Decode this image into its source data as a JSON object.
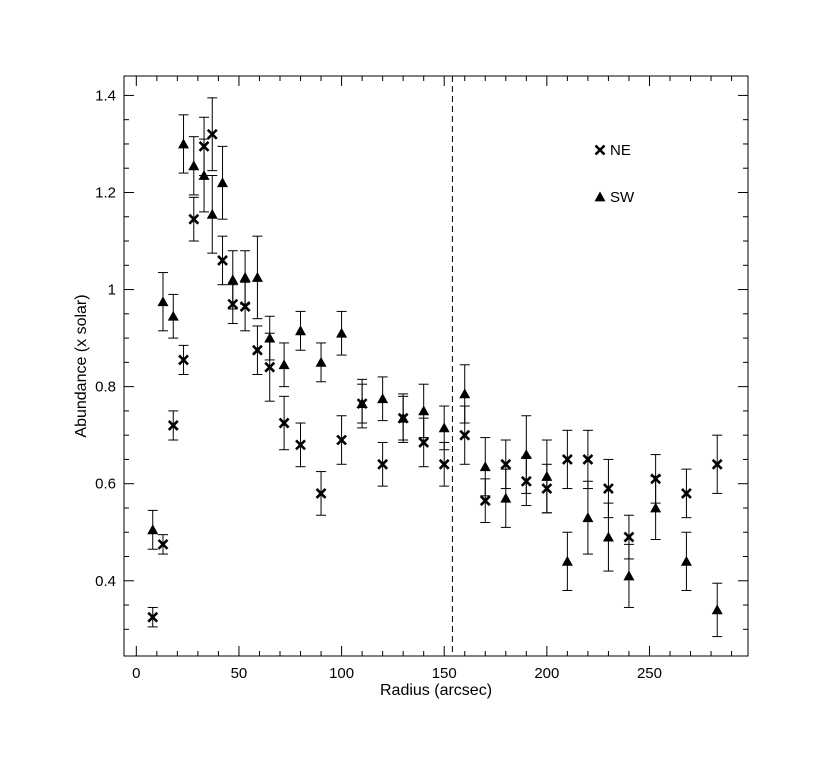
{
  "chart_data": {
    "type": "scatter",
    "title": "",
    "xlabel": "Radius (arcsec)",
    "ylabel": "Abundance (x solar)",
    "xlim": [
      -6,
      298
    ],
    "ylim": [
      0.245,
      1.44
    ],
    "xticks": [
      0,
      50,
      100,
      150,
      200,
      250
    ],
    "yticks": [
      0.4,
      0.6,
      0.8,
      1,
      1.2,
      1.4
    ],
    "ytick_labels": [
      "0.4",
      "0.6",
      "0.8",
      "1",
      "1.2",
      "1.4"
    ],
    "vline_x": 154,
    "grid": false,
    "legend_position": "top-right",
    "series": [
      {
        "name": "NE",
        "marker": "x",
        "points": [
          {
            "x": 8,
            "y": 0.325,
            "err": 0.02
          },
          {
            "x": 13,
            "y": 0.475,
            "err": 0.02
          },
          {
            "x": 18,
            "y": 0.72,
            "err": 0.03
          },
          {
            "x": 23,
            "y": 0.855,
            "err": 0.03
          },
          {
            "x": 28,
            "y": 1.145,
            "err": 0.045
          },
          {
            "x": 33,
            "y": 1.295,
            "err": 0.06
          },
          {
            "x": 37,
            "y": 1.32,
            "err": 0.075
          },
          {
            "x": 42,
            "y": 1.06,
            "err": 0.05
          },
          {
            "x": 47,
            "y": 0.97,
            "err": 0.04
          },
          {
            "x": 53,
            "y": 0.965,
            "err": 0.05
          },
          {
            "x": 59,
            "y": 0.875,
            "err": 0.05
          },
          {
            "x": 65,
            "y": 0.84,
            "err": 0.07
          },
          {
            "x": 72,
            "y": 0.725,
            "err": 0.055
          },
          {
            "x": 80,
            "y": 0.68,
            "err": 0.045
          },
          {
            "x": 90,
            "y": 0.58,
            "err": 0.045
          },
          {
            "x": 100,
            "y": 0.69,
            "err": 0.05
          },
          {
            "x": 110,
            "y": 0.765,
            "err": 0.04
          },
          {
            "x": 120,
            "y": 0.64,
            "err": 0.045
          },
          {
            "x": 130,
            "y": 0.735,
            "err": 0.05
          },
          {
            "x": 140,
            "y": 0.685,
            "err": 0.05
          },
          {
            "x": 150,
            "y": 0.64,
            "err": 0.045
          },
          {
            "x": 160,
            "y": 0.7,
            "err": 0.06
          },
          {
            "x": 170,
            "y": 0.565,
            "err": 0.045
          },
          {
            "x": 180,
            "y": 0.64,
            "err": 0.05
          },
          {
            "x": 190,
            "y": 0.605,
            "err": 0.05
          },
          {
            "x": 200,
            "y": 0.59,
            "err": 0.05
          },
          {
            "x": 210,
            "y": 0.65,
            "err": 0.06
          },
          {
            "x": 220,
            "y": 0.65,
            "err": 0.06
          },
          {
            "x": 230,
            "y": 0.59,
            "err": 0.06
          },
          {
            "x": 240,
            "y": 0.49,
            "err": 0.045
          },
          {
            "x": 253,
            "y": 0.61,
            "err": 0.05
          },
          {
            "x": 268,
            "y": 0.58,
            "err": 0.05
          },
          {
            "x": 283,
            "y": 0.64,
            "err": 0.06
          }
        ]
      },
      {
        "name": "SW",
        "marker": "triangle",
        "points": [
          {
            "x": 8,
            "y": 0.505,
            "err": 0.04
          },
          {
            "x": 13,
            "y": 0.975,
            "err": 0.06
          },
          {
            "x": 18,
            "y": 0.945,
            "err": 0.045
          },
          {
            "x": 23,
            "y": 1.3,
            "err": 0.06
          },
          {
            "x": 28,
            "y": 1.255,
            "err": 0.06
          },
          {
            "x": 33,
            "y": 1.235,
            "err": 0.075
          },
          {
            "x": 37,
            "y": 1.155,
            "err": 0.08
          },
          {
            "x": 42,
            "y": 1.22,
            "err": 0.075
          },
          {
            "x": 47,
            "y": 1.02,
            "err": 0.06
          },
          {
            "x": 53,
            "y": 1.025,
            "err": 0.055
          },
          {
            "x": 59,
            "y": 1.025,
            "err": 0.085
          },
          {
            "x": 65,
            "y": 0.9,
            "err": 0.045
          },
          {
            "x": 72,
            "y": 0.845,
            "err": 0.045
          },
          {
            "x": 80,
            "y": 0.915,
            "err": 0.04
          },
          {
            "x": 90,
            "y": 0.85,
            "err": 0.04
          },
          {
            "x": 100,
            "y": 0.91,
            "err": 0.045
          },
          {
            "x": 110,
            "y": 0.765,
            "err": 0.05
          },
          {
            "x": 120,
            "y": 0.775,
            "err": 0.045
          },
          {
            "x": 130,
            "y": 0.735,
            "err": 0.045
          },
          {
            "x": 140,
            "y": 0.75,
            "err": 0.055
          },
          {
            "x": 150,
            "y": 0.715,
            "err": 0.045
          },
          {
            "x": 160,
            "y": 0.785,
            "err": 0.06
          },
          {
            "x": 170,
            "y": 0.635,
            "err": 0.06
          },
          {
            "x": 180,
            "y": 0.57,
            "err": 0.06
          },
          {
            "x": 190,
            "y": 0.66,
            "err": 0.08
          },
          {
            "x": 200,
            "y": 0.615,
            "err": 0.075
          },
          {
            "x": 210,
            "y": 0.44,
            "err": 0.06
          },
          {
            "x": 220,
            "y": 0.53,
            "err": 0.075
          },
          {
            "x": 230,
            "y": 0.49,
            "err": 0.07
          },
          {
            "x": 240,
            "y": 0.41,
            "err": 0.065
          },
          {
            "x": 253,
            "y": 0.55,
            "err": 0.065
          },
          {
            "x": 268,
            "y": 0.44,
            "err": 0.06
          },
          {
            "x": 283,
            "y": 0.34,
            "err": 0.055
          }
        ]
      }
    ]
  }
}
